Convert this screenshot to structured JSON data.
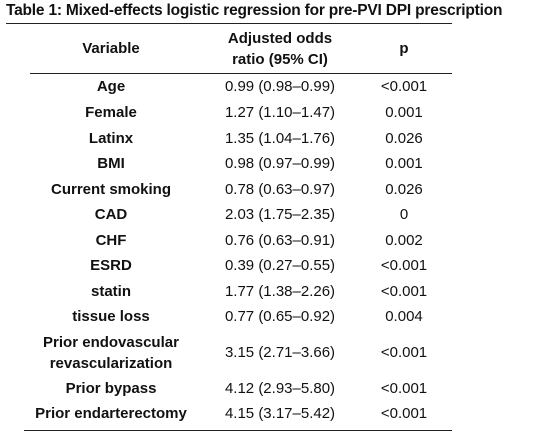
{
  "caption": "Table 1: Mixed-effects logistic regression for pre-PVI DPI prescription",
  "columns": {
    "variable": "Variable",
    "or_line1": "Adjusted odds",
    "or_line2": "ratio (95% CI)",
    "p": "p"
  },
  "rows": [
    {
      "variable": "Age",
      "or": "0.99 (0.98–0.99)",
      "p": "<0.001"
    },
    {
      "variable": "Female",
      "or": "1.27 (1.10–1.47)",
      "p": "0.001"
    },
    {
      "variable": "Latinx",
      "or": "1.35 (1.04–1.76)",
      "p": "0.026"
    },
    {
      "variable": "BMI",
      "or": "0.98 (0.97–0.99)",
      "p": "0.001"
    },
    {
      "variable": "Current smoking",
      "or": "0.78 (0.63–0.97)",
      "p": "0.026"
    },
    {
      "variable": "CAD",
      "or": "2.03 (1.75–2.35)",
      "p": "0"
    },
    {
      "variable": "CHF",
      "or": "0.76 (0.63–0.91)",
      "p": "0.002"
    },
    {
      "variable": "ESRD",
      "or": "0.39 (0.27–0.55)",
      "p": "<0.001"
    },
    {
      "variable": "statin",
      "or": "1.77 (1.38–2.26)",
      "p": "<0.001"
    },
    {
      "variable": "tissue loss",
      "or": "0.77 (0.65–0.92)",
      "p": "0.004"
    },
    {
      "variable_line1": "Prior endovascular",
      "variable_line2": "revascularization",
      "or": "3.15 (2.71–3.66)",
      "p": "<0.001"
    },
    {
      "variable": "Prior bypass",
      "or": "4.12 (2.93–5.80)",
      "p": "<0.001"
    },
    {
      "variable": "Prior endarterectomy",
      "or": "4.15 (3.17–5.42)",
      "p": "<0.001"
    }
  ]
}
